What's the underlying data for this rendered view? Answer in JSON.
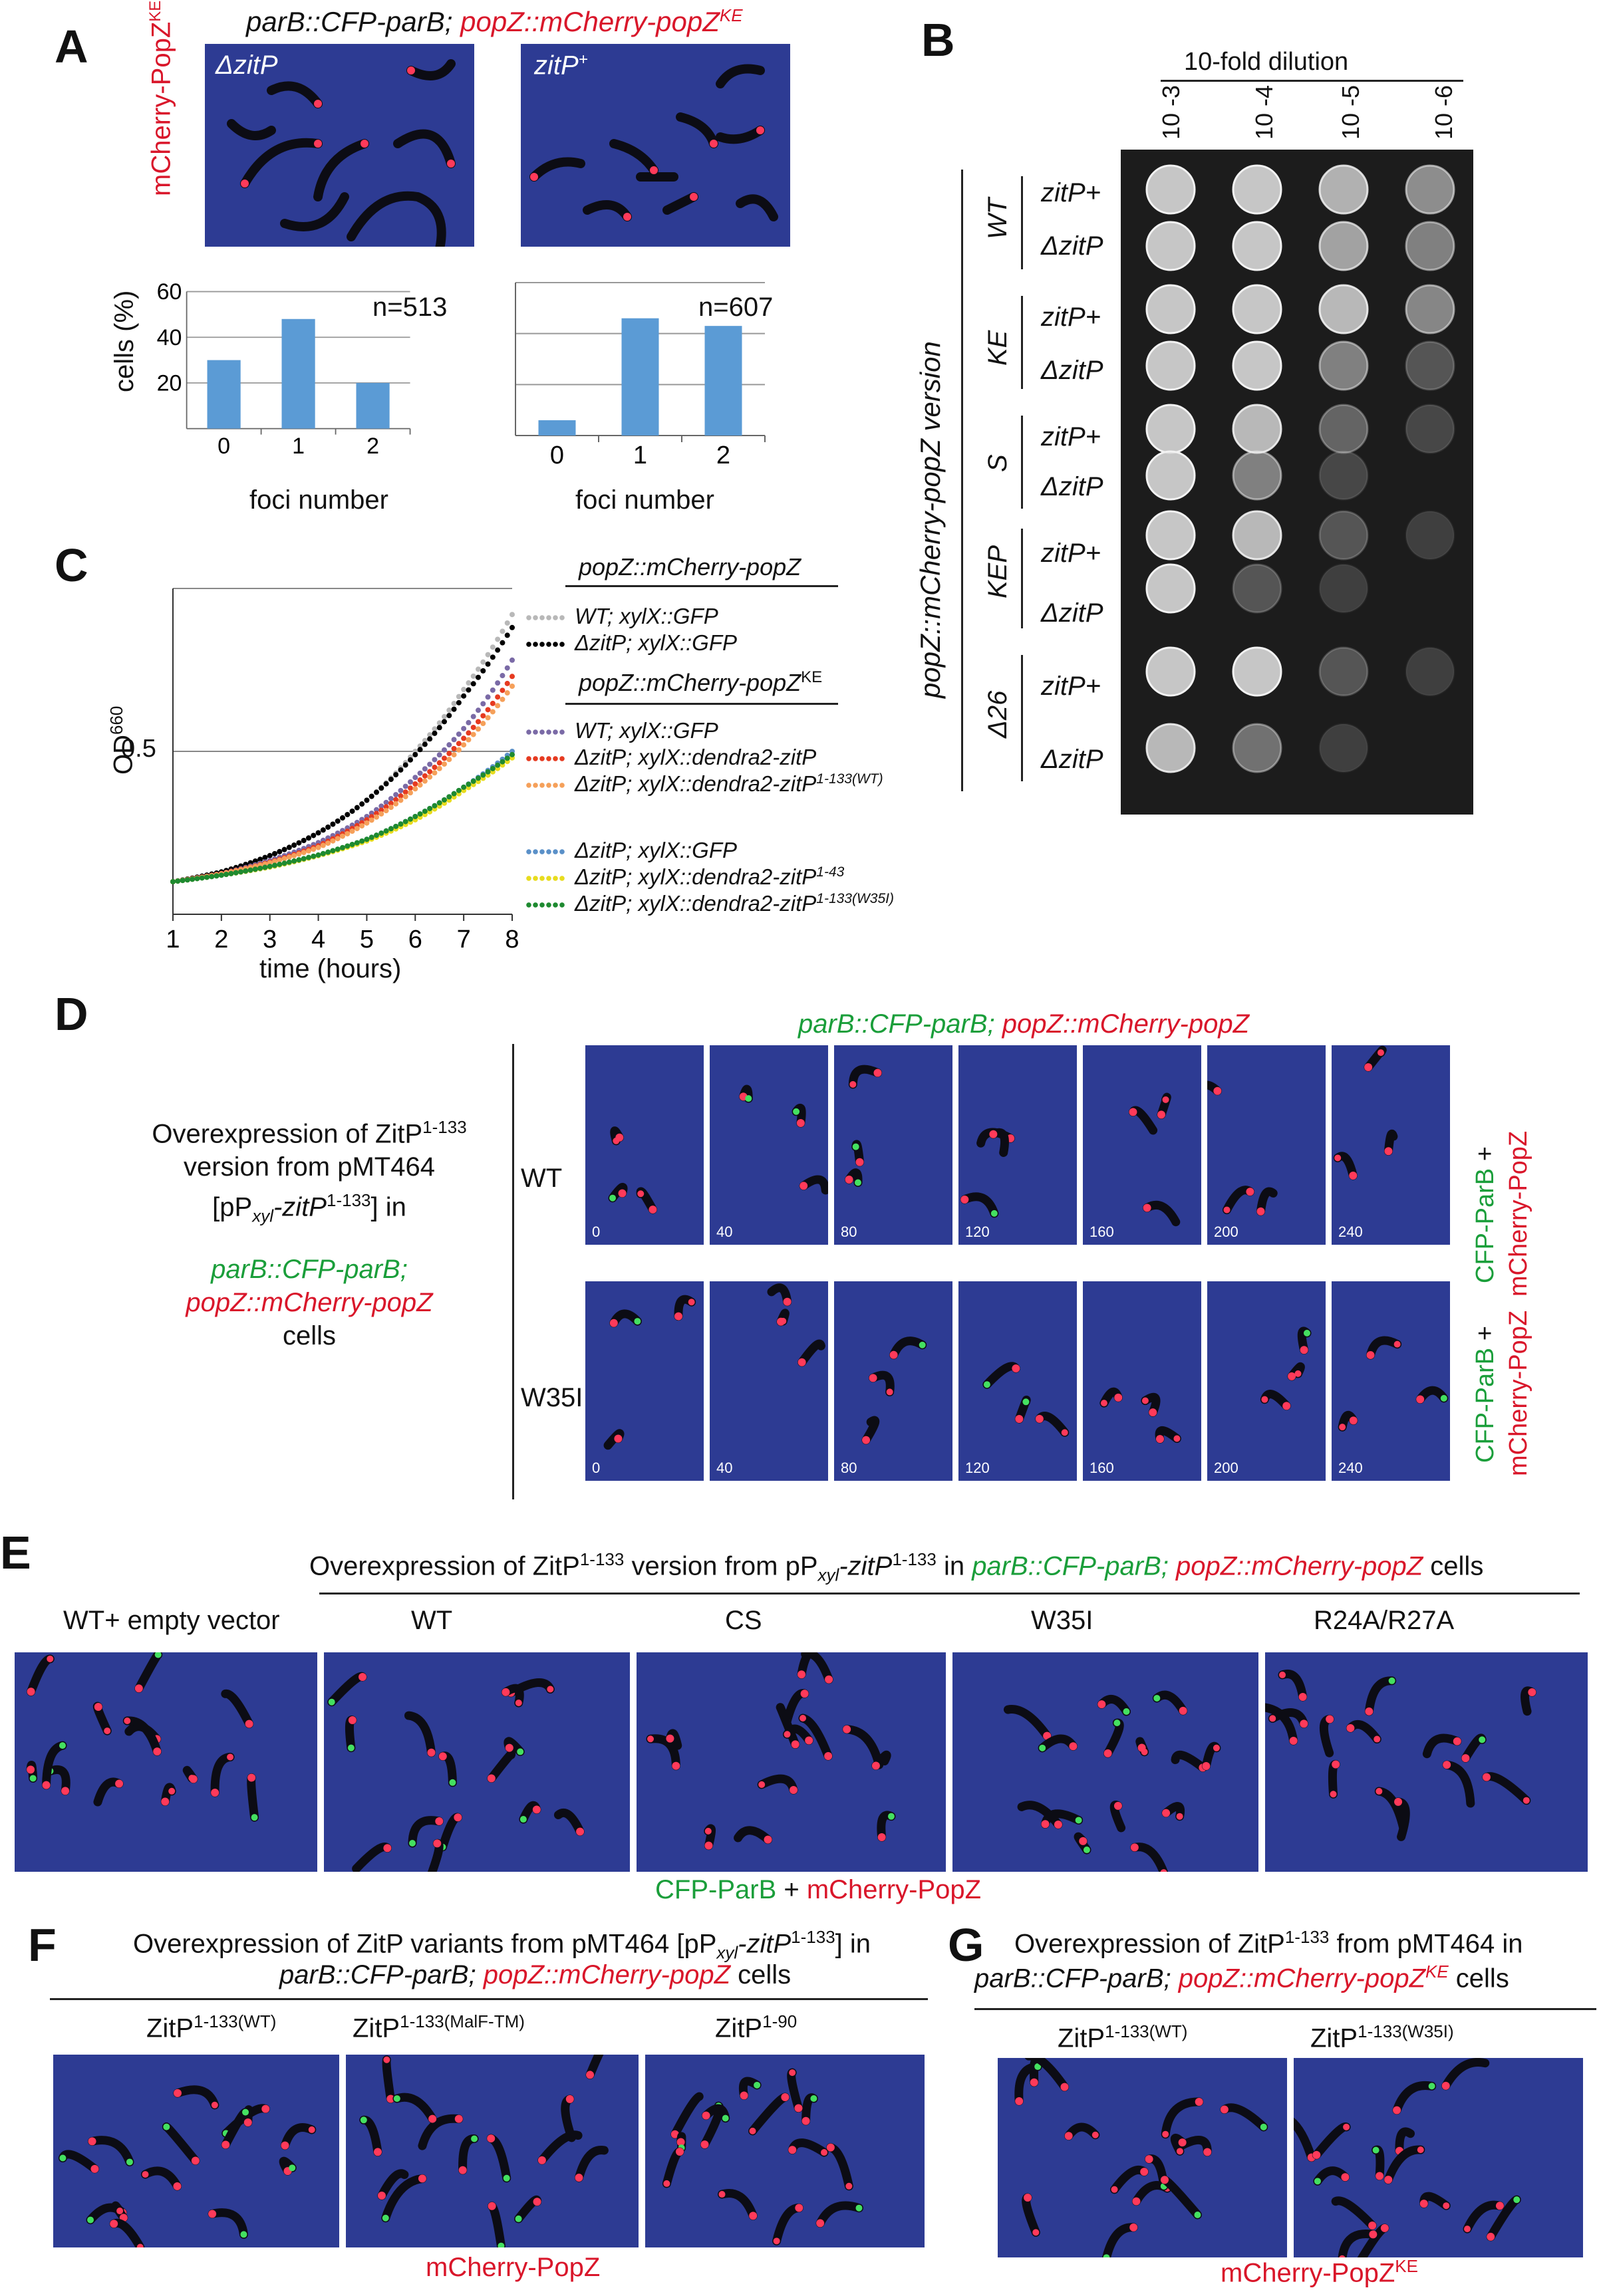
{
  "panel_labels": [
    "A",
    "B",
    "C",
    "D",
    "E",
    "F",
    "G"
  ],
  "colors": {
    "red": "#d9162a",
    "green": "#1a9e3a",
    "micro_bg": "#2d3b93",
    "bar": "#5b9bd5"
  },
  "A": {
    "genotype_part1": "parB::CFP-parB; ",
    "genotype_part2": "popZ::mCherry-popZ",
    "genotype_sup": "KE",
    "side_label": "mCherry-PopZ",
    "side_sup": "KE",
    "img1_label": "ΔzitP",
    "img2_label": "zitP",
    "img2_sup": "+",
    "n1": "n=513",
    "n2": "n=607",
    "ylabel": "cells (%)",
    "xlabel1": "foci number",
    "xlabel2": "foci number"
  },
  "B": {
    "dilution_title": "10-fold dilution",
    "dilutions": [
      "10 -3",
      "10 -4",
      "10 -5",
      "10 -6"
    ],
    "side_label": "popZ::mCherry-popZ version",
    "groups": [
      {
        "name": "WT",
        "rows": [
          "zitP+",
          "ΔzitP"
        ]
      },
      {
        "name": "KE",
        "rows": [
          "zitP+",
          "ΔzitP"
        ]
      },
      {
        "name": "S",
        "rows": [
          "zitP+",
          "ΔzitP"
        ]
      },
      {
        "name": "KEP",
        "rows": [
          "zitP+",
          "ΔzitP"
        ]
      },
      {
        "name": "Δ26",
        "rows": [
          "zitP+",
          "ΔzitP"
        ]
      }
    ]
  },
  "C": {
    "legend_head1": "popZ::mCherry-popZ",
    "legend_head2": "popZ::mCherry-popZ",
    "legend_head2_sup": "KE",
    "legend_items": [
      "WT; xylX::GFP",
      "ΔzitP; xylX::GFP",
      "WT; xylX::GFP",
      "ΔzitP; xylX::dendra2-zitP",
      "ΔzitP; xylX::dendra2-zitP",
      "ΔzitP; xylX::GFP",
      "ΔzitP; xylX::dendra2-zitP",
      "ΔzitP; xylX::dendra2-zitP"
    ],
    "legend_sups": [
      "",
      "",
      "",
      "",
      "1-133(WT)",
      "",
      "1-43",
      "1-133(W35I)"
    ],
    "ylabel": "OD",
    "ylabel_sup": "660",
    "ytick": "0.5",
    "xlabel": "time (hours)"
  },
  "chart_data": {
    "type": "line",
    "xlabel": "time (hours)",
    "ylabel": "OD660",
    "x": [
      1,
      2,
      3,
      4,
      5,
      6,
      7,
      8
    ],
    "series": [
      {
        "name": "WT; xylX::GFP (popZ::mCherry-popZ)",
        "color": "#b8b8b8",
        "values": [
          0.1,
          0.13,
          0.18,
          0.25,
          0.35,
          0.5,
          0.69,
          0.92
        ]
      },
      {
        "name": "ΔzitP; xylX::GFP (popZ::mCherry-popZ)",
        "color": "#000000",
        "values": [
          0.1,
          0.13,
          0.18,
          0.25,
          0.35,
          0.49,
          0.67,
          0.88
        ]
      },
      {
        "name": "WT; xylX::GFP (popZ::mCherry-popZKE)",
        "color": "#7a6aa6",
        "values": [
          0.1,
          0.125,
          0.165,
          0.22,
          0.3,
          0.42,
          0.57,
          0.78
        ]
      },
      {
        "name": "ΔzitP; xylX::dendra2-zitP (popZ::mCherry-popZKE)",
        "color": "#e63a20",
        "values": [
          0.1,
          0.125,
          0.16,
          0.21,
          0.29,
          0.4,
          0.54,
          0.73
        ]
      },
      {
        "name": "ΔzitP; xylX::dendra2-zitP1-133(WT) (popZ::mCherry-popZKE)",
        "color": "#f5a05a",
        "values": [
          0.1,
          0.124,
          0.158,
          0.205,
          0.28,
          0.385,
          0.52,
          0.7
        ]
      },
      {
        "name": "ΔzitP; xylX::GFP (popZ::mCherry-popZKE)",
        "color": "#5a90c8",
        "values": [
          0.1,
          0.12,
          0.145,
          0.18,
          0.23,
          0.3,
          0.39,
          0.5
        ]
      },
      {
        "name": "ΔzitP; xylX::dendra2-zitP1-43 (popZ::mCherry-popZKE)",
        "color": "#e8dc1e",
        "values": [
          0.1,
          0.12,
          0.145,
          0.18,
          0.225,
          0.29,
          0.38,
          0.48
        ]
      },
      {
        "name": "ΔzitP; xylX::dendra2-zitP1-133(W35I) (popZ::mCherry-popZKE)",
        "color": "#1e8a30",
        "values": [
          0.1,
          0.12,
          0.147,
          0.182,
          0.23,
          0.3,
          0.39,
          0.49
        ]
      }
    ],
    "bars": [
      {
        "title": "n=513",
        "categories": [
          "0",
          "1",
          "2"
        ],
        "values": [
          30,
          48,
          20
        ],
        "xlabel": "foci number",
        "ylabel": "cells (%)",
        "ylim": [
          0,
          60
        ]
      },
      {
        "title": "n=607",
        "categories": [
          "0",
          "1",
          "2"
        ],
        "values": [
          6,
          46,
          43
        ],
        "xlabel": "foci number",
        "ylabel": "cells (%)",
        "ylim": [
          0,
          60
        ]
      }
    ],
    "yticks_bar": [
      "20",
      "40",
      "60"
    ]
  },
  "D": {
    "header_p1": "parB::CFP-parB; ",
    "header_p2": "popZ::mCherry-popZ",
    "desc1": "Overexpression of ZitP",
    "desc1_sup": "1-133",
    "desc2": "version from pMT464",
    "desc3a": "[pP",
    "desc3_sub": "xyl",
    "desc3b": "-zitP",
    "desc3_sup": "1-133",
    "desc3c": "] in",
    "desc4": "parB::CFP-parB;",
    "desc5": "popZ::mCherry-popZ",
    "desc6": "cells",
    "row1": "WT",
    "row2": "W35I",
    "times": [
      "0",
      "40",
      "80",
      "120",
      "160",
      "200",
      "240"
    ],
    "side1": "CFP-ParB",
    "side2": " +",
    "side3": "mCherry-PopZ"
  },
  "E": {
    "title_a": "Overexpression of ZitP",
    "title_sup": "1-133",
    "title_b": " version from pP",
    "title_sub": "xyl",
    "title_c": "-zitP",
    "title_sup2": "1-133",
    "title_d": " in ",
    "title_green": "parB::CFP-parB;",
    "title_red": " popZ::mCherry-popZ",
    "title_e": " cells",
    "cols": [
      "WT+ empty vector",
      "WT",
      "CS",
      "W35I",
      "R24A/R27A"
    ],
    "footer_green": "CFP-ParB",
    "footer_plus": " + ",
    "footer_red": "mCherry-PopZ"
  },
  "F": {
    "title_a": "Overexpression of ZitP variants from pMT464 [pP",
    "title_sub": "xyl",
    "title_b": "-zitP",
    "title_sup": "1-133",
    "title_c": "] in",
    "line2_a": "parB::CFP-parB; ",
    "line2_red": "popZ::mCherry-popZ",
    "line2_b": " cells",
    "cols": [
      "ZitP",
      "ZitP",
      "ZitP"
    ],
    "col_sups": [
      "1-133(WT)",
      "1-133(MalF-TM)",
      "1-90"
    ],
    "footer": "mCherry-PopZ"
  },
  "G": {
    "title_a": "Overexpression of ZitP",
    "title_sup": "1-133",
    "title_b": " from pMT464  in",
    "line2_a": "parB::CFP-parB; ",
    "line2_red": "popZ::mCherry-popZ",
    "line2_sup": "KE",
    "line2_b": " cells",
    "cols": [
      "ZitP",
      "ZitP"
    ],
    "col_sups": [
      "1-133(WT)",
      "1-133(W35I)"
    ],
    "footer": "mCherry-PopZ",
    "footer_sup": "KE"
  }
}
